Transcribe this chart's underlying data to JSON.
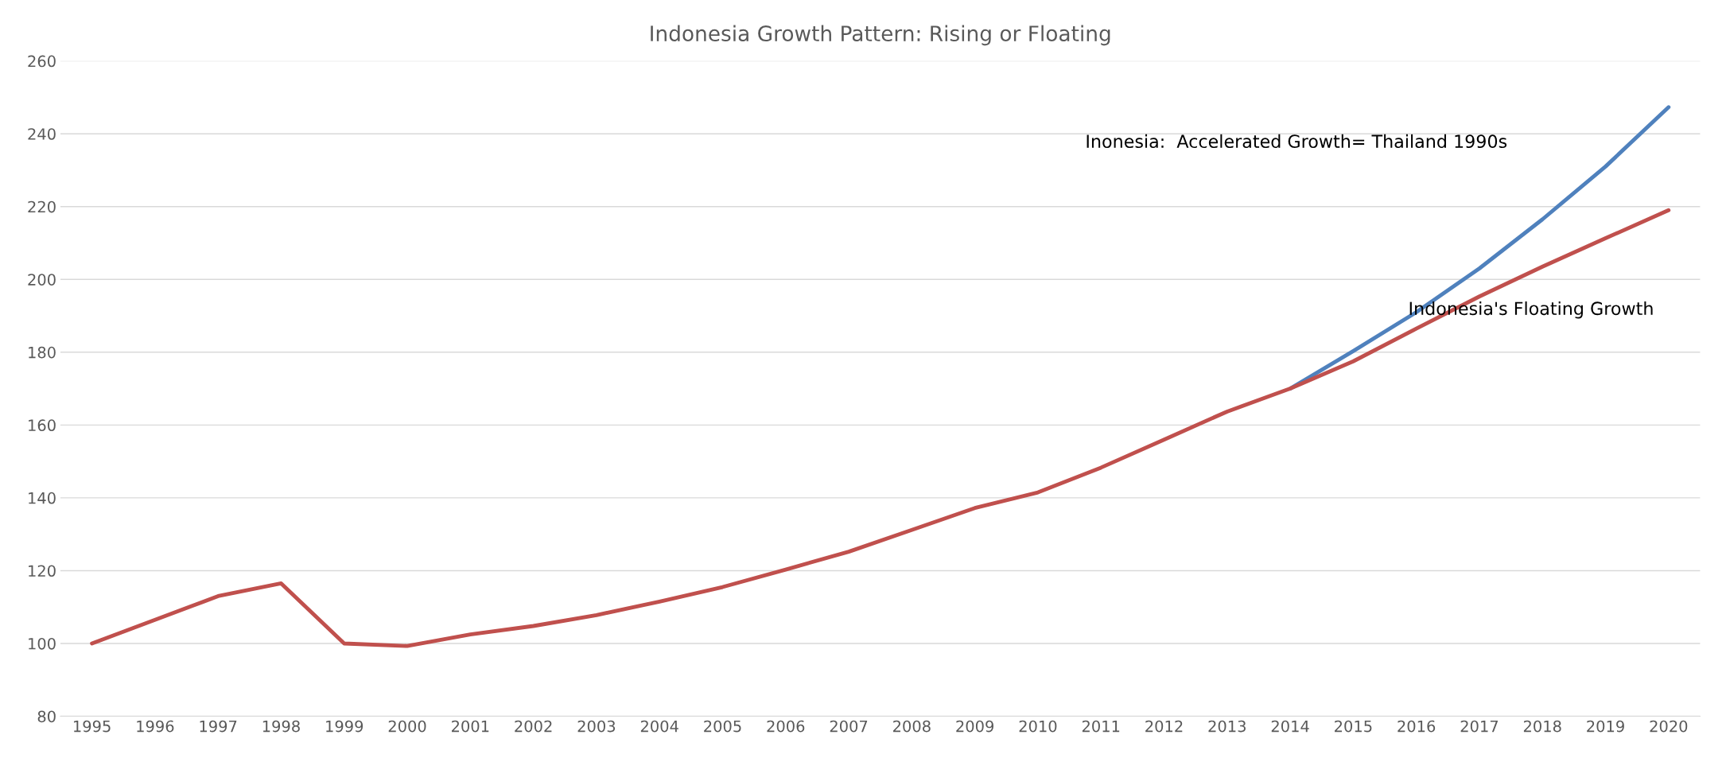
{
  "chart_data": {
    "type": "line",
    "title": "Indonesia Growth Pattern: Rising or Floating",
    "x": [
      1995,
      1996,
      1997,
      1998,
      1999,
      2000,
      2001,
      2002,
      2003,
      2004,
      2005,
      2006,
      2007,
      2008,
      2009,
      2010,
      2011,
      2012,
      2013,
      2014,
      2015,
      2016,
      2017,
      2018,
      2019,
      2020
    ],
    "series": [
      {
        "color": "#4f81bd",
        "values": [
          null,
          null,
          null,
          null,
          null,
          null,
          null,
          null,
          null,
          null,
          null,
          null,
          null,
          null,
          null,
          null,
          null,
          null,
          null,
          170,
          180.3,
          191,
          203,
          216.5,
          231,
          247.3
        ]
      },
      {
        "color": "#c0504d",
        "values": [
          100,
          106.5,
          113,
          116.5,
          100,
          99.3,
          102.5,
          104.8,
          107.8,
          111.5,
          115.5,
          120.3,
          125.2,
          131.2,
          137.2,
          141.5,
          148.3,
          156,
          163.7,
          170,
          177.5,
          186.5,
          195.3,
          203.5,
          211.3,
          219
        ]
      }
    ],
    "annotations": [
      "Inonesia:  Accelerated Growth= Thailand 1990s",
      "Indonesia's Floating Growth"
    ],
    "xlim": [
      1994.5,
      2020.5
    ],
    "xticks": [
      1995,
      1996,
      1997,
      1998,
      1999,
      2000,
      2001,
      2002,
      2003,
      2004,
      2005,
      2006,
      2007,
      2008,
      2009,
      2010,
      2011,
      2012,
      2013,
      2014,
      2015,
      2016,
      2017,
      2018,
      2019,
      2020
    ],
    "ylim": [
      80,
      260
    ],
    "yticks": [
      80,
      100,
      120,
      140,
      160,
      180,
      200,
      220,
      240,
      260
    ],
    "grid": "y",
    "marker": "none",
    "line_style": "solid"
  }
}
